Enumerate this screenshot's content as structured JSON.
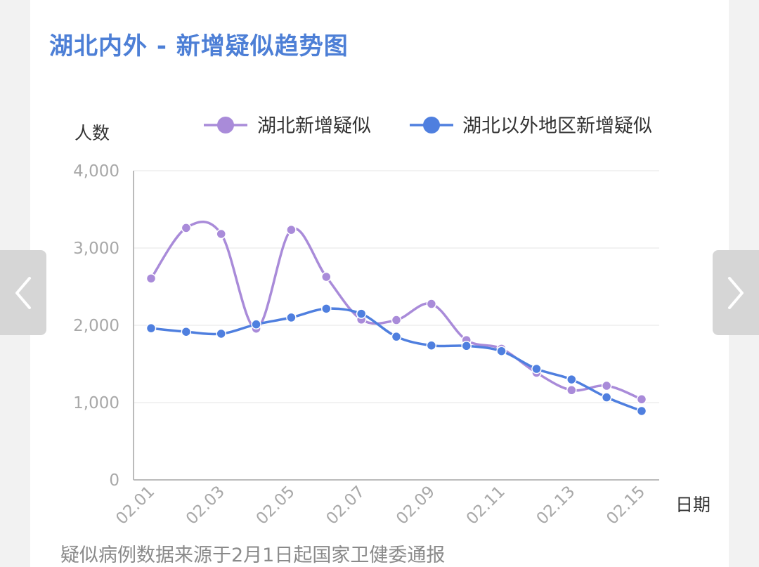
{
  "page": {
    "title": "湖北内外 - 新增疑似趋势图",
    "source_note": "疑似病例数据来源于2月1日起国家卫健委通报"
  },
  "icons": {
    "prev": "chevron-left-icon",
    "next": "chevron-right-icon"
  },
  "colors": {
    "title": "#4d7fd6",
    "hubei": "#a98bd9",
    "outside": "#4f7fdf",
    "grid": "#eeeeee",
    "axis": "#bbbbbb"
  },
  "chart_data": {
    "type": "line",
    "title": "湖北内外 - 新增疑似趋势图",
    "xlabel": "日期",
    "ylabel": "人数",
    "ylim": [
      0,
      4000
    ],
    "yticks": [
      "0",
      "1,000",
      "2,000",
      "3,000",
      "4,000"
    ],
    "ytick_values": [
      0,
      1000,
      2000,
      3000,
      4000
    ],
    "categories": [
      "02.01",
      "02.02",
      "02.03",
      "02.04",
      "02.05",
      "02.06",
      "02.07",
      "02.08",
      "02.09",
      "02.10",
      "02.11",
      "02.12",
      "02.13",
      "02.14",
      "02.15"
    ],
    "xtick_labels": [
      "02.01",
      "02.03",
      "02.05",
      "02.07",
      "02.09",
      "02.11",
      "02.13",
      "02.15"
    ],
    "grid": true,
    "legend_position": "top",
    "series": [
      {
        "name": "湖北新增疑似",
        "color": "#a98bd9",
        "values": [
          2606,
          3260,
          3182,
          1957,
          3235,
          2627,
          2075,
          2068,
          2277,
          1808,
          1697,
          1386,
          1161,
          1218,
          1043
        ]
      },
      {
        "name": "湖北以外地区新增疑似",
        "color": "#4f7fdf",
        "values": [
          1962,
          1916,
          1891,
          2012,
          2101,
          2215,
          2149,
          1853,
          1739,
          1734,
          1666,
          1436,
          1299,
          1068,
          891
        ]
      }
    ]
  }
}
